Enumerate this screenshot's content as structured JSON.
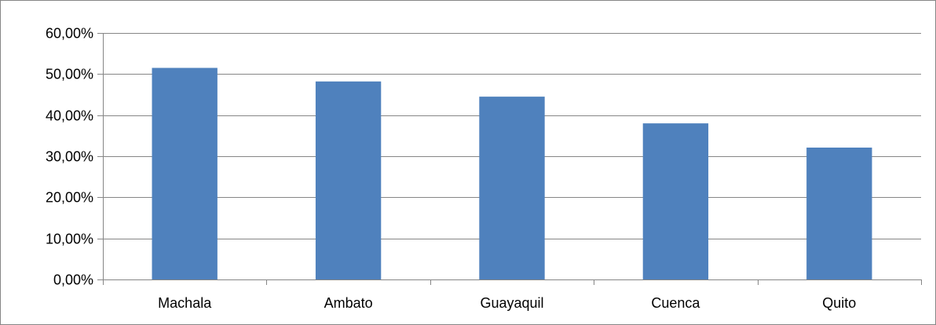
{
  "chart_data": {
    "type": "bar",
    "title": "",
    "xlabel": "",
    "ylabel": "",
    "categories": [
      "Machala",
      "Ambato",
      "Guayaquil",
      "Cuenca",
      "Quito"
    ],
    "values": [
      51.5,
      48.2,
      44.5,
      38.0,
      32.1
    ],
    "ylim": [
      0,
      60
    ],
    "y_ticks": [
      0,
      10,
      20,
      30,
      40,
      50,
      60
    ],
    "y_tick_labels": [
      "0,00%",
      "10,00%",
      "20,00%",
      "30,00%",
      "40,00%",
      "50,00%",
      "60,00%"
    ],
    "grid": true,
    "legend": "none",
    "bar_color": "#4F81BD",
    "grid_color": "#868686"
  }
}
